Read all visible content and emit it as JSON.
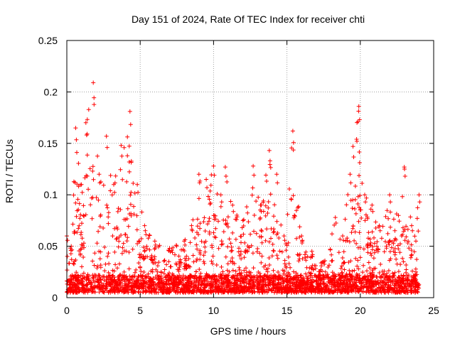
{
  "chart_data": {
    "type": "scatter",
    "title": "Day 151 of 2024, Rate Of TEC Index for receiver chti",
    "xlabel": "GPS time / hours",
    "ylabel": "ROTI / TECUs",
    "xlim": [
      0,
      25
    ],
    "ylim": [
      0,
      0.25
    ],
    "x_ticks": [
      0,
      5,
      10,
      15,
      20,
      25
    ],
    "x_tick_labels": [
      "0",
      "5",
      "10",
      "15",
      "20",
      "25"
    ],
    "y_ticks": [
      0,
      0.05,
      0.1,
      0.15,
      0.2,
      0.25
    ],
    "y_tick_labels": [
      "0",
      "0.05",
      "0.1",
      "0.15",
      "0.2",
      "0.25"
    ],
    "grid": true,
    "marker": "+",
    "series": [
      {
        "name": "ROTI",
        "color": "#ff0000",
        "envelope": [
          {
            "x": 0.0,
            "y": 0.06
          },
          {
            "x": 0.3,
            "y": 0.05
          },
          {
            "x": 0.6,
            "y": 0.165
          },
          {
            "x": 1.0,
            "y": 0.11
          },
          {
            "x": 1.3,
            "y": 0.17
          },
          {
            "x": 1.8,
            "y": 0.209
          },
          {
            "x": 2.2,
            "y": 0.12
          },
          {
            "x": 2.7,
            "y": 0.157
          },
          {
            "x": 3.2,
            "y": 0.11
          },
          {
            "x": 3.7,
            "y": 0.148
          },
          {
            "x": 4.3,
            "y": 0.181
          },
          {
            "x": 4.8,
            "y": 0.11
          },
          {
            "x": 5.3,
            "y": 0.07
          },
          {
            "x": 6.0,
            "y": 0.055
          },
          {
            "x": 7.0,
            "y": 0.048
          },
          {
            "x": 8.0,
            "y": 0.055
          },
          {
            "x": 8.5,
            "y": 0.07
          },
          {
            "x": 9.0,
            "y": 0.12
          },
          {
            "x": 9.5,
            "y": 0.115
          },
          {
            "x": 10.0,
            "y": 0.128
          },
          {
            "x": 10.5,
            "y": 0.1
          },
          {
            "x": 10.8,
            "y": 0.127
          },
          {
            "x": 11.3,
            "y": 0.09
          },
          {
            "x": 12.0,
            "y": 0.075
          },
          {
            "x": 12.7,
            "y": 0.128
          },
          {
            "x": 13.2,
            "y": 0.09
          },
          {
            "x": 13.8,
            "y": 0.143
          },
          {
            "x": 14.3,
            "y": 0.12
          },
          {
            "x": 14.8,
            "y": 0.06
          },
          {
            "x": 15.4,
            "y": 0.162
          },
          {
            "x": 16.0,
            "y": 0.06
          },
          {
            "x": 16.7,
            "y": 0.045
          },
          {
            "x": 17.5,
            "y": 0.035
          },
          {
            "x": 18.3,
            "y": 0.078
          },
          {
            "x": 18.8,
            "y": 0.06
          },
          {
            "x": 19.3,
            "y": 0.12
          },
          {
            "x": 19.5,
            "y": 0.147
          },
          {
            "x": 19.9,
            "y": 0.186
          },
          {
            "x": 20.3,
            "y": 0.1
          },
          {
            "x": 20.8,
            "y": 0.09
          },
          {
            "x": 21.3,
            "y": 0.07
          },
          {
            "x": 22.0,
            "y": 0.1
          },
          {
            "x": 22.6,
            "y": 0.08
          },
          {
            "x": 23.0,
            "y": 0.127
          },
          {
            "x": 23.5,
            "y": 0.07
          },
          {
            "x": 24.0,
            "y": 0.1
          }
        ],
        "baseline": [
          0.005,
          0.022
        ]
      }
    ]
  }
}
